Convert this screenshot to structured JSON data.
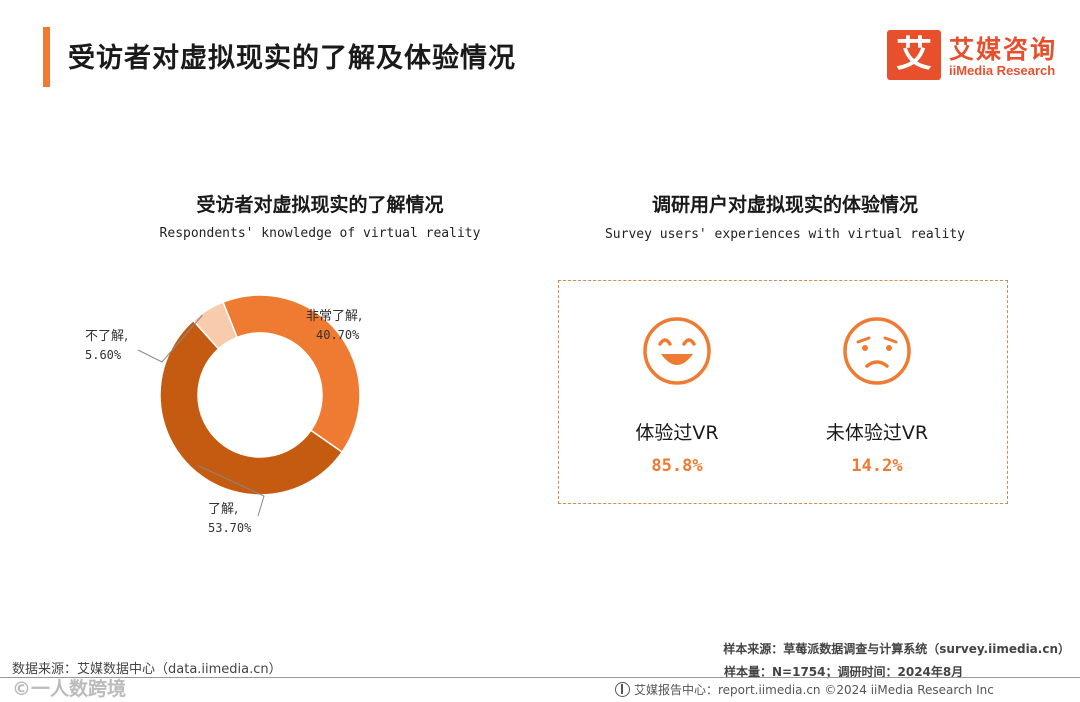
{
  "header": {
    "title": "受访者对虚拟现实的了解及体验情况",
    "logo_mark": "艾",
    "logo_cn": "艾媒咨询",
    "logo_en": "iiMedia Research"
  },
  "colors": {
    "accent": "#ee7b31",
    "slice_very": "#ee7b31",
    "slice_know": "#c55a11",
    "slice_not": "#f8cbad",
    "logo": "#e8502d"
  },
  "left_panel": {
    "title": "受访者对虚拟现实的了解情况",
    "subtitle": "Respondents' knowledge of virtual reality"
  },
  "right_panel": {
    "title": "调研用户对虚拟现实的体验情况",
    "subtitle": "Survey users' experiences with virtual reality",
    "items": [
      {
        "icon": "happy-face-icon",
        "label": "体验过VR",
        "value": "85.8%"
      },
      {
        "icon": "sad-face-icon",
        "label": "未体验过VR",
        "value": "14.2%"
      }
    ]
  },
  "chart_data": {
    "type": "pie",
    "donut": true,
    "slices": [
      {
        "label": "非常了解,",
        "value": 40.7,
        "display": "40.70%",
        "color": "#ee7b31"
      },
      {
        "label": "了解,",
        "value": 53.7,
        "display": "53.70%",
        "color": "#c55a11"
      },
      {
        "label": "不了解,",
        "value": 5.6,
        "display": "5.60%",
        "color": "#f8cbad"
      }
    ]
  },
  "footer": {
    "source_left": "数据来源：艾媒数据中心（data.iimedia.cn）",
    "sample_source": "样本来源：草莓派数据调查与计算系统（survey.iimedia.cn）",
    "sample_info": "样本量：N=1754；调研时间：2024年8月",
    "report_center": "艾媒报告中心：report.iimedia.cn  ©2024  iiMedia Research  Inc",
    "watermark": "©一人数跨境"
  }
}
